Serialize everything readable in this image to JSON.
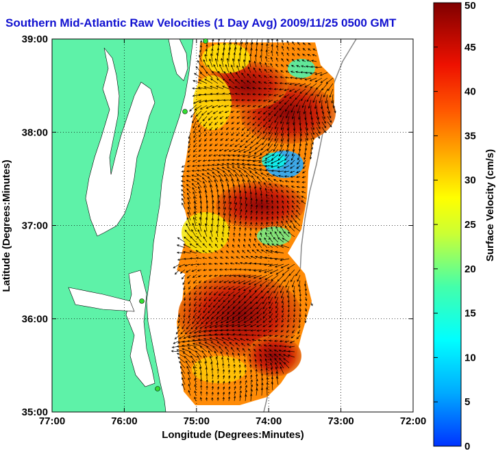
{
  "title": "Southern Mid-Atlantic Raw Velocities (1 Day Avg) 2009/11/25 0500 GMT",
  "map": {
    "xlabel": "Longitude (Degrees:Minutes)",
    "ylabel": "Latitude (Degrees:Minutes)",
    "xticks": [
      "77:00",
      "76:00",
      "75:00",
      "74:00",
      "73:00",
      "72:00"
    ],
    "yticks": [
      "39:00",
      "38:00",
      "37:00",
      "36:00",
      "35:00"
    ],
    "land_color": "#5ef2a8",
    "grid": "dotted"
  },
  "colorbar": {
    "label": "Surface Velocity (cm/s)",
    "ticks": [
      "50",
      "45",
      "40",
      "35",
      "30",
      "25",
      "20",
      "15",
      "10",
      "5",
      "0"
    ],
    "range": [
      0,
      50
    ]
  }
}
